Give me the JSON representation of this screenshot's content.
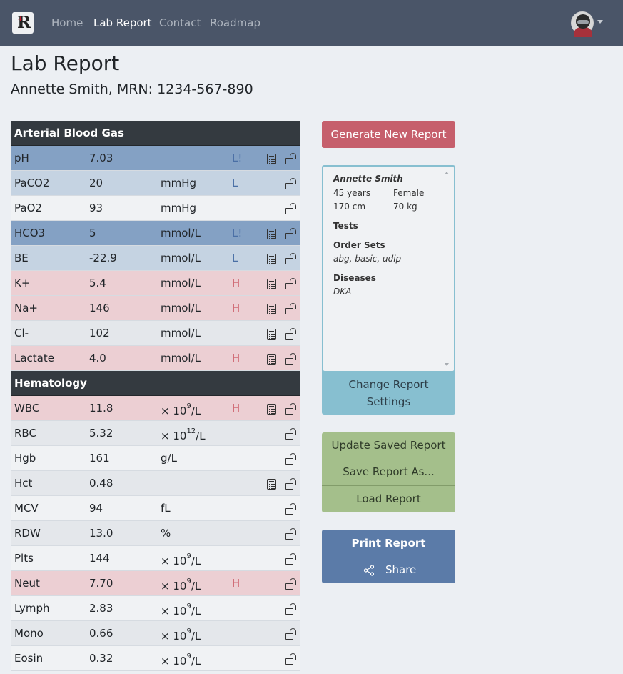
{
  "navbar": {
    "logo_letter": "R",
    "logo_mark": "+",
    "links": [
      "Home",
      "Lab Report",
      "Contact",
      "Roadmap"
    ],
    "active_link": "Lab Report"
  },
  "page": {
    "title": "Lab Report",
    "patient_line": "Annette Smith, MRN: 1234-567-890"
  },
  "lab_sections": [
    {
      "title": "Arterial Blood Gas",
      "rows": [
        {
          "name": "pH",
          "value": "7.03",
          "unit": "",
          "flag": "L!",
          "status": "critical-low",
          "calc": true
        },
        {
          "name": "PaCO2",
          "value": "20",
          "unit": "mmHg",
          "flag": "L",
          "status": "low",
          "calc": false
        },
        {
          "name": "PaO2",
          "value": "93",
          "unit": "mmHg",
          "flag": "",
          "status": "normal",
          "calc": false
        },
        {
          "name": "HCO3",
          "value": "5",
          "unit": "mmol/L",
          "flag": "L!",
          "status": "critical-low",
          "calc": true
        },
        {
          "name": "BE",
          "value": "-22.9",
          "unit": "mmol/L",
          "flag": "L",
          "status": "low",
          "calc": true
        },
        {
          "name": "K+",
          "value": "5.4",
          "unit": "mmol/L",
          "flag": "H",
          "status": "high",
          "calc": true
        },
        {
          "name": "Na+",
          "value": "146",
          "unit": "mmol/L",
          "flag": "H",
          "status": "high",
          "calc": true
        },
        {
          "name": "Cl-",
          "value": "102",
          "unit": "mmol/L",
          "flag": "",
          "status": "normal",
          "calc": true
        },
        {
          "name": "Lactate",
          "value": "4.0",
          "unit": "mmol/L",
          "flag": "H",
          "status": "high",
          "calc": true
        }
      ]
    },
    {
      "title": "Hematology",
      "rows": [
        {
          "name": "WBC",
          "value": "11.8",
          "unit": "× 10",
          "unit_exp": "9",
          "unit_tail": "/L",
          "flag": "H",
          "status": "high",
          "calc": true
        },
        {
          "name": "RBC",
          "value": "5.32",
          "unit": "× 10",
          "unit_exp": "12",
          "unit_tail": "/L",
          "flag": "",
          "status": "normal",
          "calc": false
        },
        {
          "name": "Hgb",
          "value": "161",
          "unit": "g/L",
          "flag": "",
          "status": "normal",
          "calc": false
        },
        {
          "name": "Hct",
          "value": "0.48",
          "unit": "",
          "flag": "",
          "status": "normal",
          "calc": true
        },
        {
          "name": "MCV",
          "value": "94",
          "unit": "fL",
          "flag": "",
          "status": "normal",
          "calc": false
        },
        {
          "name": "RDW",
          "value": "13.0",
          "unit": "%",
          "flag": "",
          "status": "normal",
          "calc": false
        },
        {
          "name": "Plts",
          "value": "144",
          "unit": "× 10",
          "unit_exp": "9",
          "unit_tail": "/L",
          "flag": "",
          "status": "normal",
          "calc": false
        },
        {
          "name": "Neut",
          "value": "7.70",
          "unit": "× 10",
          "unit_exp": "9",
          "unit_tail": "/L",
          "flag": "H",
          "status": "high",
          "calc": false
        },
        {
          "name": "Lymph",
          "value": "2.83",
          "unit": "× 10",
          "unit_exp": "9",
          "unit_tail": "/L",
          "flag": "",
          "status": "normal",
          "calc": false
        },
        {
          "name": "Mono",
          "value": "0.66",
          "unit": "× 10",
          "unit_exp": "9",
          "unit_tail": "/L",
          "flag": "",
          "status": "normal",
          "calc": false
        },
        {
          "name": "Eosin",
          "value": "0.32",
          "unit": "× 10",
          "unit_exp": "9",
          "unit_tail": "/L",
          "flag": "",
          "status": "normal",
          "calc": false
        }
      ]
    }
  ],
  "sidebar": {
    "generate_button": "Generate New Report",
    "info": {
      "patient_name": "Annette Smith",
      "age": "45 years",
      "sex": "Female",
      "height": "170 cm",
      "weight": "70 kg",
      "tests_label": "Tests",
      "order_sets_label": "Order Sets",
      "order_sets_value": "abg, basic, udip",
      "diseases_label": "Diseases",
      "diseases_value": "DKA"
    },
    "change_settings_line1": "Change Report",
    "change_settings_line2": "Settings",
    "update_saved": "Update Saved Report",
    "save_as": "Save Report As...",
    "load": "Load Report",
    "print": "Print Report",
    "share": "Share"
  },
  "icons": {
    "calculator": "calculator-icon",
    "unlock": "unlock-icon",
    "share": "share-icon",
    "avatar": "avatar",
    "caret": "chevron-down-icon"
  },
  "colors": {
    "navbar_bg": "#4a5568",
    "section_header_bg": "#343a40",
    "critical_low_row": "#84a1c4",
    "low_row": "#c5d3e2",
    "high_row": "#eccfd3",
    "generate_button": "#c65f6c",
    "settings_card": "#87bfd0",
    "save_group": "#a4bf8b",
    "print_group": "#5b7ba8"
  }
}
